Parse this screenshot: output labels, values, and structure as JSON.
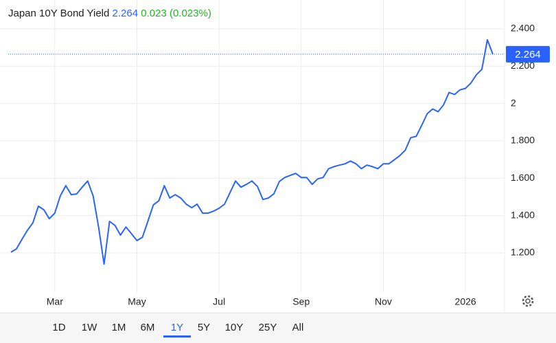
{
  "chart_data": {
    "type": "line",
    "title": "Japan 10Y Bond Yield",
    "price": {
      "value": 2.264,
      "label": "2.264"
    },
    "change": "0.023 (0.023%)",
    "color": "#2962ff",
    "categories": [
      null,
      null,
      null,
      null,
      null,
      null,
      null,
      null,
      "Mar",
      null,
      null,
      null,
      null,
      null,
      null,
      null,
      null,
      null,
      null,
      null,
      null,
      null,
      null,
      "May",
      null,
      null,
      null,
      null,
      null,
      null,
      null,
      null,
      null,
      null,
      null,
      null,
      null,
      null,
      "Jul",
      null,
      null,
      null,
      null,
      null,
      null,
      null,
      null,
      null,
      null,
      null,
      null,
      null,
      null,
      "Sep",
      null,
      null,
      null,
      null,
      null,
      null,
      null,
      null,
      null,
      null,
      null,
      null,
      null,
      null,
      "Nov",
      null,
      null,
      null,
      null,
      null,
      null,
      null,
      null,
      null,
      null,
      null,
      null,
      null,
      null,
      "2026",
      null,
      null,
      null,
      null,
      null
    ],
    "values": [
      1.204,
      1.222,
      1.273,
      1.321,
      1.361,
      1.45,
      1.431,
      1.383,
      1.413,
      1.505,
      1.56,
      1.512,
      1.516,
      1.552,
      1.585,
      1.505,
      1.339,
      1.14,
      1.369,
      1.347,
      1.295,
      1.339,
      1.303,
      1.266,
      1.284,
      1.369,
      1.457,
      1.479,
      1.56,
      1.494,
      1.512,
      1.494,
      1.461,
      1.442,
      1.461,
      1.413,
      1.413,
      1.424,
      1.439,
      1.461,
      1.523,
      1.585,
      1.552,
      1.567,
      1.585,
      1.556,
      1.486,
      1.494,
      1.516,
      1.582,
      1.604,
      1.615,
      1.626,
      1.604,
      1.604,
      1.567,
      1.596,
      1.604,
      1.651,
      1.662,
      1.67,
      1.677,
      1.692,
      1.677,
      1.651,
      1.67,
      1.662,
      1.651,
      1.677,
      1.677,
      1.699,
      1.721,
      1.75,
      1.817,
      1.824,
      1.883,
      1.945,
      1.971,
      1.956,
      1.993,
      2.059,
      2.048,
      2.073,
      2.081,
      2.11,
      2.154,
      2.183,
      2.341,
      2.264
    ],
    "ylim": [
      0.99,
      2.51
    ],
    "yticks": [
      {
        "value": 1.2,
        "label": "1.200"
      },
      {
        "value": 1.4,
        "label": "1.400"
      },
      {
        "value": 1.6,
        "label": "1.600"
      },
      {
        "value": 1.8,
        "label": "1.800"
      },
      2,
      {
        "value": 2.2,
        "label": "2.200"
      },
      {
        "value": 2.4,
        "label": "2.400"
      }
    ],
    "grid": true,
    "ranges": [
      "1D",
      "1W",
      "1M",
      "6M",
      "1Y",
      "5Y",
      "10Y",
      "25Y",
      "All"
    ],
    "selected_range": "1Y"
  }
}
